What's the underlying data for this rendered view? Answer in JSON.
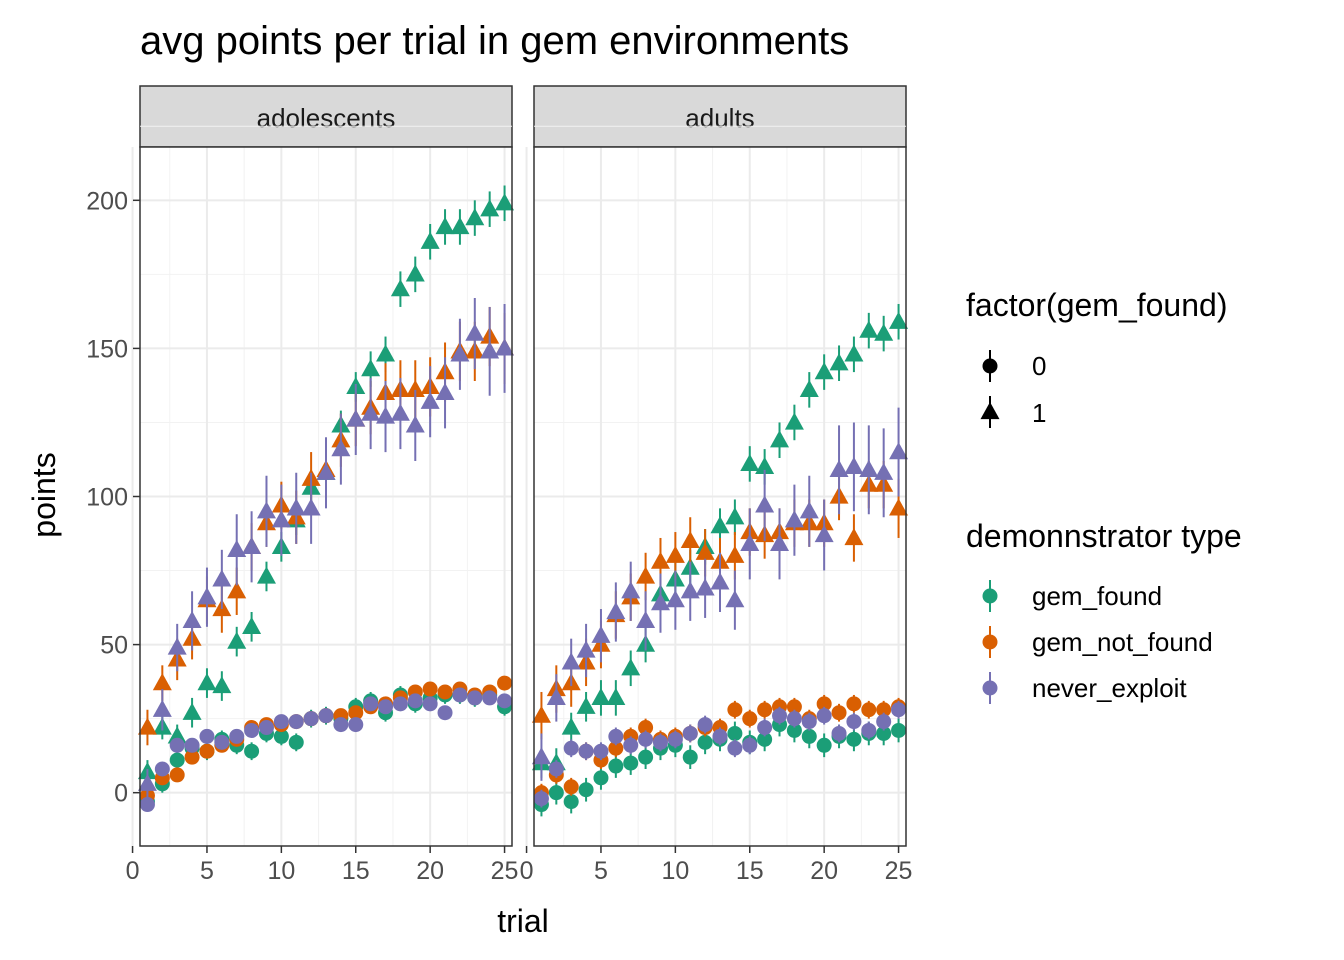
{
  "chart_data": {
    "type": "scatter",
    "title": "avg points per trial in gem environments",
    "xlabel": "trial",
    "ylabel": "points",
    "xlim": [
      0.5,
      25.5
    ],
    "ylim": [
      -18,
      218
    ],
    "xticks": [
      0,
      5,
      10,
      15,
      20,
      25
    ],
    "yticks": [
      0,
      50,
      100,
      150,
      200
    ],
    "grid": true,
    "panels": [
      "adolescents",
      "adults"
    ],
    "legend_shape": {
      "title": "factor(gem_found)",
      "entries": [
        {
          "label": "0",
          "shape": "circle"
        },
        {
          "label": "1",
          "shape": "triangle"
        }
      ]
    },
    "legend_color": {
      "title": "demonnstrator type",
      "entries": [
        {
          "label": "gem_found",
          "color": "#1b9e77"
        },
        {
          "label": "gem_not_found",
          "color": "#d95f02"
        },
        {
          "label": "never_exploit",
          "color": "#7570b3"
        }
      ]
    },
    "series": [
      {
        "panel": "adolescents",
        "demonstrator": "gem_found",
        "gem_found": 0,
        "color": "#1b9e77",
        "shape": "circle",
        "x": [
          1,
          2,
          3,
          4,
          5,
          6,
          7,
          8,
          9,
          10,
          11,
          12,
          13,
          14,
          15,
          16,
          17,
          18,
          19,
          20,
          21,
          22,
          23,
          24,
          25
        ],
        "y": [
          -3,
          3,
          11,
          15,
          14,
          18,
          16,
          14,
          20,
          19,
          17,
          25,
          26,
          25,
          29,
          31,
          27,
          33,
          30,
          32,
          33,
          33,
          32,
          33,
          29
        ],
        "err": [
          3,
          3,
          3,
          3,
          3,
          3,
          3,
          3,
          3,
          3,
          3,
          3,
          3,
          3,
          3,
          3,
          3,
          3,
          3,
          3,
          3,
          3,
          3,
          3,
          3
        ]
      },
      {
        "panel": "adolescents",
        "demonstrator": "gem_found",
        "gem_found": 1,
        "color": "#1b9e77",
        "shape": "triangle",
        "x": [
          1,
          2,
          3,
          4,
          5,
          6,
          7,
          8,
          9,
          10,
          11,
          12,
          13,
          14,
          15,
          16,
          17,
          18,
          19,
          20,
          21,
          22,
          23,
          24,
          25
        ],
        "y": [
          7,
          22,
          19,
          27,
          37,
          36,
          51,
          56,
          73,
          83,
          92,
          103,
          108,
          124,
          137,
          143,
          148,
          170,
          175,
          186,
          191,
          191,
          194,
          197,
          199
        ],
        "err": [
          4,
          4,
          4,
          5,
          5,
          5,
          5,
          5,
          5,
          5,
          5,
          5,
          5,
          5,
          5,
          6,
          6,
          6,
          6,
          6,
          6,
          6,
          6,
          6,
          6
        ]
      },
      {
        "panel": "adolescents",
        "demonstrator": "gem_not_found",
        "gem_found": 0,
        "color": "#d95f02",
        "shape": "circle",
        "x": [
          1,
          2,
          3,
          4,
          5,
          6,
          7,
          8,
          9,
          10,
          11,
          12,
          13,
          14,
          15,
          16,
          17,
          18,
          19,
          20,
          21,
          22,
          23,
          24,
          25
        ],
        "y": [
          -1,
          5,
          6,
          12,
          14,
          16,
          18,
          22,
          23,
          23,
          24,
          25,
          26,
          26,
          27,
          29,
          30,
          32,
          34,
          35,
          34,
          35,
          33,
          34,
          37
        ],
        "err": [
          2,
          2,
          2,
          2,
          2,
          2,
          2,
          2,
          2,
          2,
          2,
          2,
          2,
          2,
          2,
          2,
          2,
          2,
          2,
          2,
          2,
          2,
          2,
          2,
          2
        ]
      },
      {
        "panel": "adolescents",
        "demonstrator": "gem_not_found",
        "gem_found": 1,
        "color": "#d95f02",
        "shape": "triangle",
        "x": [
          1,
          2,
          3,
          4,
          5,
          6,
          7,
          8,
          9,
          10,
          11,
          12,
          13,
          14,
          15,
          16,
          17,
          18,
          19,
          20,
          21,
          22,
          23,
          24,
          25
        ],
        "y": [
          22,
          37,
          45,
          52,
          65,
          62,
          68,
          83,
          91,
          97,
          93,
          106,
          109,
          119,
          126,
          130,
          135,
          136,
          136,
          137,
          142,
          149,
          149,
          154,
          150
        ],
        "err": [
          6,
          6,
          7,
          7,
          8,
          8,
          8,
          8,
          8,
          8,
          9,
          9,
          9,
          9,
          9,
          9,
          10,
          10,
          10,
          10,
          10,
          10,
          10,
          10,
          12
        ]
      },
      {
        "panel": "adolescents",
        "demonstrator": "never_exploit",
        "gem_found": 0,
        "color": "#7570b3",
        "shape": "circle",
        "x": [
          1,
          2,
          3,
          4,
          5,
          6,
          7,
          8,
          9,
          10,
          11,
          12,
          13,
          14,
          15,
          16,
          17,
          18,
          19,
          20,
          21,
          22,
          23,
          24,
          25
        ],
        "y": [
          -4,
          8,
          16,
          16,
          19,
          17,
          19,
          21,
          22,
          24,
          24,
          25,
          26,
          23,
          23,
          30,
          29,
          30,
          31,
          30,
          27,
          33,
          32,
          32,
          31
        ],
        "err": [
          2,
          2,
          2,
          2,
          2,
          2,
          2,
          2,
          2,
          2,
          2,
          2,
          2,
          2,
          2,
          2,
          2,
          2,
          2,
          2,
          2,
          2,
          2,
          2,
          2
        ]
      },
      {
        "panel": "adolescents",
        "demonstrator": "never_exploit",
        "gem_found": 1,
        "color": "#7570b3",
        "shape": "triangle",
        "x": [
          1,
          2,
          3,
          4,
          5,
          6,
          7,
          8,
          9,
          10,
          11,
          12,
          13,
          14,
          15,
          16,
          17,
          18,
          19,
          20,
          21,
          22,
          23,
          24,
          25
        ],
        "y": [
          3,
          28,
          49,
          58,
          66,
          72,
          82,
          83,
          95,
          92,
          96,
          96,
          108,
          116,
          126,
          128,
          127,
          128,
          124,
          132,
          135,
          148,
          155,
          149,
          150
        ],
        "err": [
          5,
          7,
          8,
          10,
          10,
          10,
          12,
          12,
          12,
          12,
          12,
          12,
          12,
          12,
          12,
          12,
          12,
          12,
          12,
          12,
          12,
          12,
          12,
          15,
          15
        ]
      },
      {
        "panel": "adults",
        "demonstrator": "gem_found",
        "gem_found": 0,
        "color": "#1b9e77",
        "shape": "circle",
        "x": [
          1,
          2,
          3,
          4,
          5,
          6,
          7,
          8,
          9,
          10,
          11,
          12,
          13,
          14,
          15,
          16,
          17,
          18,
          19,
          20,
          21,
          22,
          23,
          24,
          25
        ],
        "y": [
          -4,
          0,
          -3,
          1,
          5,
          9,
          10,
          12,
          15,
          16,
          12,
          17,
          18,
          20,
          17,
          18,
          23,
          21,
          19,
          16,
          19,
          18,
          20,
          20,
          21
        ],
        "err": [
          4,
          4,
          4,
          4,
          4,
          4,
          4,
          4,
          4,
          4,
          4,
          4,
          4,
          4,
          4,
          4,
          4,
          4,
          4,
          4,
          4,
          4,
          4,
          4,
          4
        ]
      },
      {
        "panel": "adults",
        "demonstrator": "gem_found",
        "gem_found": 1,
        "color": "#1b9e77",
        "shape": "triangle",
        "x": [
          1,
          2,
          3,
          4,
          5,
          6,
          7,
          8,
          9,
          10,
          11,
          12,
          13,
          14,
          15,
          16,
          17,
          18,
          19,
          20,
          21,
          22,
          23,
          24,
          25
        ],
        "y": [
          10,
          10,
          22,
          29,
          32,
          32,
          42,
          50,
          67,
          72,
          76,
          83,
          90,
          93,
          111,
          110,
          119,
          125,
          136,
          142,
          145,
          148,
          156,
          155,
          159
        ],
        "err": [
          5,
          5,
          5,
          5,
          6,
          6,
          6,
          6,
          6,
          6,
          6,
          6,
          6,
          6,
          6,
          6,
          6,
          6,
          6,
          6,
          6,
          6,
          6,
          6,
          6
        ]
      },
      {
        "panel": "adults",
        "demonstrator": "gem_not_found",
        "gem_found": 0,
        "color": "#d95f02",
        "shape": "circle",
        "x": [
          1,
          2,
          3,
          4,
          5,
          6,
          7,
          8,
          9,
          10,
          11,
          12,
          13,
          14,
          15,
          16,
          17,
          18,
          19,
          20,
          21,
          22,
          23,
          24,
          25
        ],
        "y": [
          0,
          6,
          2,
          14,
          11,
          15,
          19,
          22,
          18,
          19,
          20,
          22,
          22,
          28,
          25,
          28,
          29,
          29,
          25,
          30,
          27,
          30,
          28,
          28,
          29
        ],
        "err": [
          3,
          3,
          3,
          3,
          3,
          3,
          3,
          3,
          3,
          3,
          3,
          3,
          3,
          3,
          3,
          3,
          3,
          3,
          3,
          3,
          3,
          3,
          3,
          3,
          3
        ]
      },
      {
        "panel": "adults",
        "demonstrator": "gem_not_found",
        "gem_found": 1,
        "color": "#d95f02",
        "shape": "triangle",
        "x": [
          1,
          2,
          3,
          4,
          5,
          6,
          7,
          8,
          9,
          10,
          11,
          12,
          13,
          14,
          15,
          16,
          17,
          18,
          19,
          20,
          21,
          22,
          23,
          24,
          25
        ],
        "y": [
          26,
          35,
          37,
          44,
          50,
          60,
          66,
          73,
          78,
          80,
          85,
          81,
          78,
          80,
          88,
          87,
          88,
          91,
          91,
          91,
          100,
          86,
          104,
          104,
          96
        ],
        "err": [
          8,
          8,
          8,
          8,
          8,
          8,
          8,
          8,
          8,
          8,
          8,
          8,
          8,
          8,
          8,
          8,
          8,
          8,
          8,
          8,
          8,
          8,
          8,
          8,
          10
        ]
      },
      {
        "panel": "adults",
        "demonstrator": "never_exploit",
        "gem_found": 0,
        "color": "#7570b3",
        "shape": "circle",
        "x": [
          1,
          2,
          3,
          4,
          5,
          6,
          7,
          8,
          9,
          10,
          11,
          12,
          13,
          14,
          15,
          16,
          17,
          18,
          19,
          20,
          21,
          22,
          23,
          24,
          25
        ],
        "y": [
          -2,
          8,
          15,
          14,
          14,
          19,
          16,
          18,
          17,
          18,
          20,
          23,
          19,
          15,
          16,
          22,
          26,
          25,
          24,
          26,
          20,
          24,
          21,
          24,
          28
        ],
        "err": [
          3,
          3,
          3,
          3,
          3,
          3,
          3,
          3,
          3,
          3,
          3,
          3,
          3,
          3,
          3,
          3,
          3,
          3,
          3,
          3,
          3,
          3,
          3,
          3,
          3
        ]
      },
      {
        "panel": "adults",
        "demonstrator": "never_exploit",
        "gem_found": 1,
        "color": "#7570b3",
        "shape": "triangle",
        "x": [
          1,
          2,
          3,
          4,
          5,
          6,
          7,
          8,
          9,
          10,
          11,
          12,
          13,
          14,
          15,
          16,
          17,
          18,
          19,
          20,
          21,
          22,
          23,
          24,
          25
        ],
        "y": [
          12,
          32,
          44,
          48,
          53,
          61,
          68,
          58,
          64,
          65,
          68,
          69,
          71,
          65,
          84,
          97,
          84,
          92,
          95,
          87,
          109,
          110,
          109,
          108,
          115
        ],
        "err": [
          8,
          8,
          8,
          9,
          9,
          10,
          10,
          10,
          10,
          10,
          10,
          10,
          10,
          10,
          12,
          12,
          12,
          12,
          12,
          12,
          15,
          15,
          15,
          15,
          15
        ]
      }
    ]
  }
}
